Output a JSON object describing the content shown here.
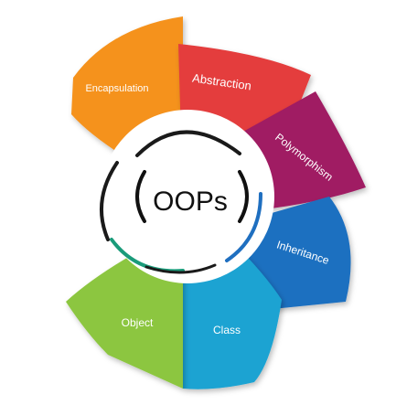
{
  "center": {
    "title": "OOPs"
  },
  "segments": [
    {
      "id": "encapsulation",
      "label": "Encapsulation",
      "color": "#f5921e"
    },
    {
      "id": "abstraction",
      "label": "Abstraction",
      "color": "#e43d3d"
    },
    {
      "id": "polymorphism",
      "label": "Polymorphism",
      "color": "#a01b63"
    },
    {
      "id": "inheritance",
      "label": "Inheritance",
      "color": "#1f6fc0"
    },
    {
      "id": "class",
      "label": "Class",
      "color": "#1aa3d2"
    },
    {
      "id": "object",
      "label": "Object",
      "color": "#8cc63f"
    }
  ]
}
